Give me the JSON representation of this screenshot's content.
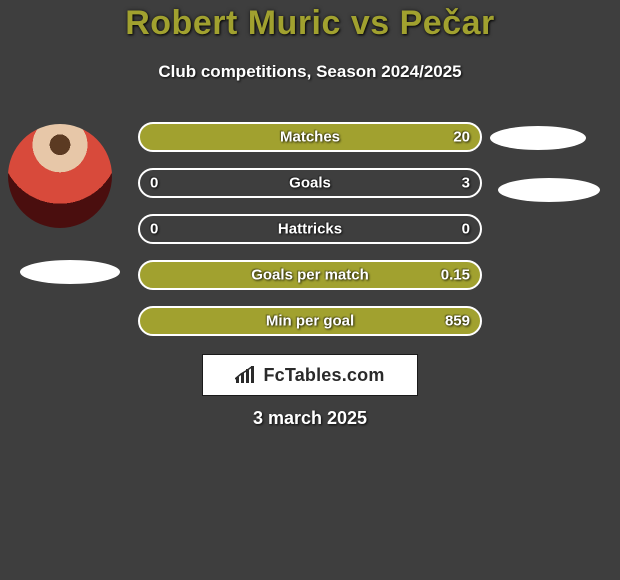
{
  "background_color": "#3e3e3e",
  "title": {
    "text": "Robert Muric vs Pečar",
    "color": "#a1a12f",
    "fontsize": 34
  },
  "subtitle": {
    "text": "Club competitions, Season 2024/2025",
    "color": "#ffffff",
    "fontsize": 17
  },
  "row_style": {
    "fill_color": "#a1a12f",
    "border_color": "#ffffff",
    "empty_bg": "transparent",
    "height": 30,
    "radius": 15,
    "label_fontsize": 15,
    "label_color": "#ffffff"
  },
  "rows": [
    {
      "category": "Matches",
      "left": "",
      "right": "20",
      "fill_ratio": 1.0
    },
    {
      "category": "Goals",
      "left": "0",
      "right": "3",
      "fill_ratio": 0.0
    },
    {
      "category": "Hattricks",
      "left": "0",
      "right": "0",
      "fill_ratio": 0.0
    },
    {
      "category": "Goals per match",
      "left": "",
      "right": "0.15",
      "fill_ratio": 1.0
    },
    {
      "category": "Min per goal",
      "left": "",
      "right": "859",
      "fill_ratio": 1.0
    }
  ],
  "badge": {
    "text": "FcTables.com",
    "bg": "#ffffff",
    "border": "#1a1a1a",
    "text_color": "#2a2a2a",
    "icon_color": "#2a2a2a"
  },
  "date": {
    "text": "3 march 2025",
    "color": "#ffffff",
    "fontsize": 18
  },
  "pills": {
    "bg": "#ffffff"
  }
}
